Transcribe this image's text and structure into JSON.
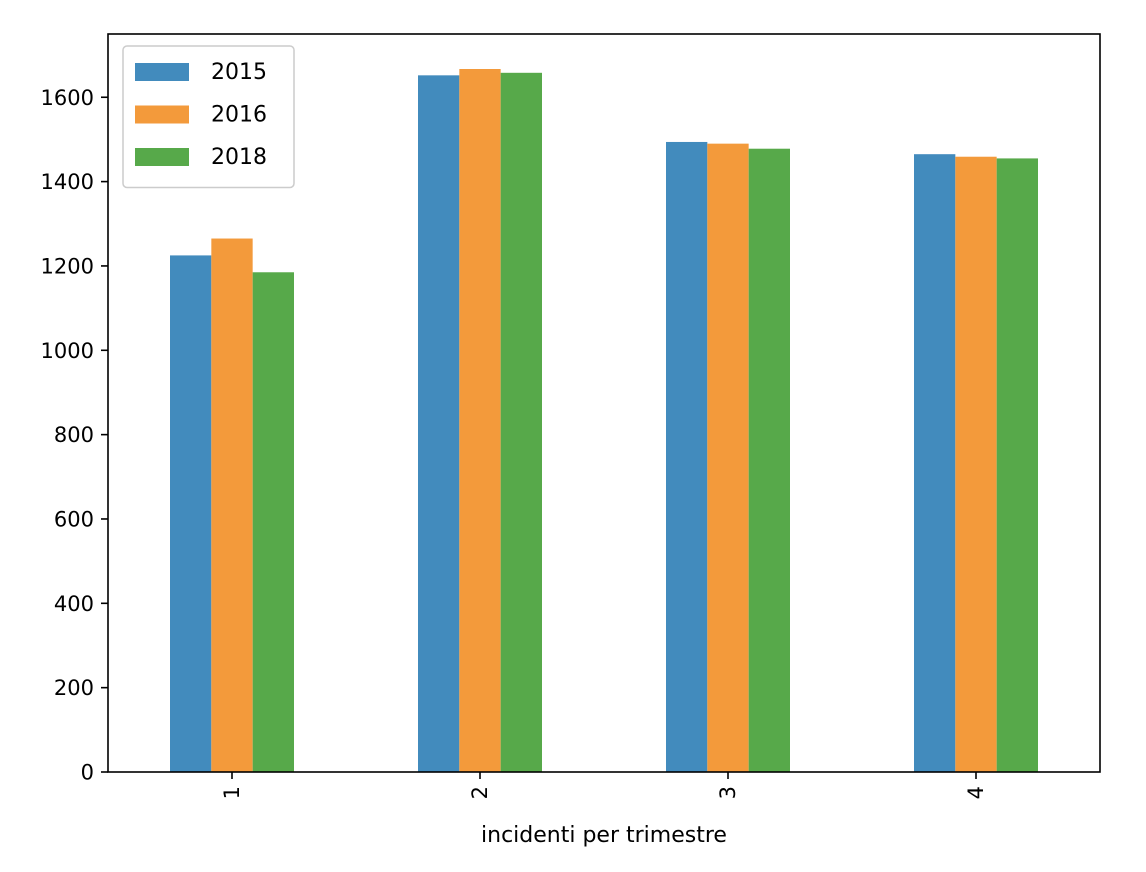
{
  "chart_data": {
    "type": "bar",
    "title": "",
    "xlabel": "incidenti per trimestre",
    "ylabel": "",
    "categories": [
      "1",
      "2",
      "3",
      "4"
    ],
    "series": [
      {
        "name": "2015",
        "color": "#428bbd",
        "values": [
          1225,
          1652,
          1494,
          1465
        ]
      },
      {
        "name": "2016",
        "color": "#f39a3b",
        "values": [
          1265,
          1667,
          1490,
          1459
        ]
      },
      {
        "name": "2018",
        "color": "#57a94a",
        "values": [
          1185,
          1658,
          1478,
          1455
        ]
      }
    ],
    "ylim": [
      0,
      1750
    ],
    "yticks": [
      "0",
      "200",
      "400",
      "600",
      "800",
      "1000",
      "1200",
      "1400",
      "1600"
    ],
    "x_tick_rotation": "vertical",
    "grid": false,
    "legend_position": "upper-left"
  }
}
